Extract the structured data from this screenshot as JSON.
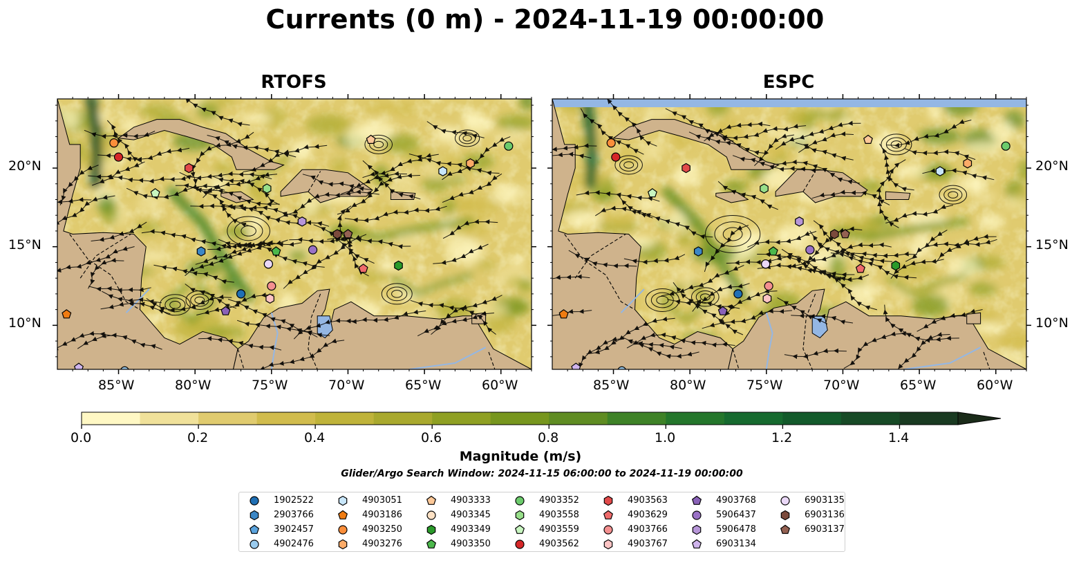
{
  "title": "Currents (0 m) - 2024-11-19 00:00:00",
  "panels": [
    {
      "name": "RTOFS"
    },
    {
      "name": "ESPC"
    }
  ],
  "lon_labels": [
    "85°W",
    "80°W",
    "75°W",
    "70°W",
    "65°W",
    "60°W"
  ],
  "lat_labels": [
    "20°N",
    "15°N",
    "10°N"
  ],
  "colorbar": {
    "label": "Magnitude (m/s)",
    "tick_labels": [
      "0.0",
      "0.2",
      "0.4",
      "0.6",
      "0.8",
      "1.0",
      "1.2",
      "1.4"
    ],
    "ticks": [
      0.0,
      0.2,
      0.4,
      0.6,
      0.8,
      1.0,
      1.2,
      1.4
    ],
    "min": 0.0,
    "max": 1.5,
    "levels": [
      0.0,
      0.1,
      0.2,
      0.3,
      0.4,
      0.5,
      0.6,
      0.7,
      0.8,
      0.9,
      1.0,
      1.1,
      1.2,
      1.3,
      1.4,
      1.5
    ],
    "colors": [
      "#fff8c4",
      "#f0e19a",
      "#e0cb6f",
      "#d1bc4d",
      "#bfb33a",
      "#a9a92e",
      "#8fa023",
      "#77961e",
      "#5f8c22",
      "#3e8227",
      "#24762b",
      "#166a2f",
      "#135a2b",
      "#174a26",
      "#193a21",
      "#1a2b19"
    ],
    "extend": "max"
  },
  "search_window": "Glider/Argo Search Window: 2024-11-15 06:00:00 to 2024-11-19 00:00:00",
  "legend_entries": [
    {
      "id": "1902522",
      "marker": "circle",
      "color": "#1f6fb4"
    },
    {
      "id": "2903766",
      "marker": "hexagon",
      "color": "#3c87c6"
    },
    {
      "id": "3902457",
      "marker": "pentagon",
      "color": "#5ba4de"
    },
    {
      "id": "4902476",
      "marker": "circle",
      "color": "#9acbee"
    },
    {
      "id": "4903051",
      "marker": "hexagon",
      "color": "#c8e6fa"
    },
    {
      "id": "4903186",
      "marker": "pentagon",
      "color": "#f07c12"
    },
    {
      "id": "4903250",
      "marker": "circle",
      "color": "#fb8e3a"
    },
    {
      "id": "4903276",
      "marker": "hexagon",
      "color": "#fcab68"
    },
    {
      "id": "4903333",
      "marker": "pentagon",
      "color": "#fdc898"
    },
    {
      "id": "4903345",
      "marker": "circle",
      "color": "#fde1c4"
    },
    {
      "id": "4903349",
      "marker": "hexagon",
      "color": "#2a9a2a"
    },
    {
      "id": "4903350",
      "marker": "pentagon",
      "color": "#4cb84c"
    },
    {
      "id": "4903352",
      "marker": "circle",
      "color": "#6ccb6c"
    },
    {
      "id": "4903558",
      "marker": "hexagon",
      "color": "#98df8a"
    },
    {
      "id": "4903559",
      "marker": "pentagon",
      "color": "#c8f5c0"
    },
    {
      "id": "4903562",
      "marker": "circle",
      "color": "#d62728"
    },
    {
      "id": "4903563",
      "marker": "hexagon",
      "color": "#e24a4a"
    },
    {
      "id": "4903629",
      "marker": "pentagon",
      "color": "#ef6b6b"
    },
    {
      "id": "4903766",
      "marker": "circle",
      "color": "#f49090"
    },
    {
      "id": "4903767",
      "marker": "hexagon",
      "color": "#fcc4c4"
    },
    {
      "id": "4903768",
      "marker": "pentagon",
      "color": "#8a62b8"
    },
    {
      "id": "5906437",
      "marker": "circle",
      "color": "#9a72c6"
    },
    {
      "id": "5906478",
      "marker": "hexagon",
      "color": "#b796d8"
    },
    {
      "id": "6903134",
      "marker": "pentagon",
      "color": "#cfb4ec"
    },
    {
      "id": "6903135",
      "marker": "circle",
      "color": "#ead8f7"
    },
    {
      "id": "6903136",
      "marker": "hexagon",
      "color": "#7b4a3c"
    },
    {
      "id": "6903137",
      "marker": "pentagon",
      "color": "#946152"
    }
  ],
  "float_positions": [
    {
      "id": "1902522",
      "lon": -77.0,
      "lat": 12.0
    },
    {
      "id": "2903766",
      "lon": -79.6,
      "lat": 14.7
    },
    {
      "id": "3902457",
      "lon": -84.0,
      "lat": 6.5
    },
    {
      "id": "4902476",
      "lon": -84.6,
      "lat": 7.1
    },
    {
      "id": "4903051",
      "lon": -63.8,
      "lat": 19.8
    },
    {
      "id": "4903186",
      "lon": -88.4,
      "lat": 10.7
    },
    {
      "id": "4903250",
      "lon": -85.3,
      "lat": 21.6
    },
    {
      "id": "4903276",
      "lon": -62.0,
      "lat": 20.3
    },
    {
      "id": "4903333",
      "lon": -68.5,
      "lat": 21.8
    },
    {
      "id": "4903345",
      "lon": -75.2,
      "lat": 13.9
    },
    {
      "id": "4903349",
      "lon": -66.7,
      "lat": 13.8
    },
    {
      "id": "4903350",
      "lon": -74.7,
      "lat": 14.7
    },
    {
      "id": "4903352",
      "lon": -59.5,
      "lat": 21.4
    },
    {
      "id": "4903558",
      "lon": -75.3,
      "lat": 18.7
    },
    {
      "id": "4903559",
      "lon": -82.6,
      "lat": 18.4
    },
    {
      "id": "4903562",
      "lon": -85.0,
      "lat": 20.7
    },
    {
      "id": "4903563",
      "lon": -80.4,
      "lat": 20.0
    },
    {
      "id": "4903629",
      "lon": -69.0,
      "lat": 13.6
    },
    {
      "id": "4903766",
      "lon": -75.0,
      "lat": 12.5
    },
    {
      "id": "4903767",
      "lon": -75.1,
      "lat": 11.7
    },
    {
      "id": "4903768",
      "lon": -78.0,
      "lat": 10.9
    },
    {
      "id": "5906437",
      "lon": -72.3,
      "lat": 14.8
    },
    {
      "id": "5906478",
      "lon": -73.0,
      "lat": 16.6
    },
    {
      "id": "6903134",
      "lon": -87.6,
      "lat": 7.3
    },
    {
      "id": "6903135",
      "lon": -75.2,
      "lat": 13.9
    },
    {
      "id": "6903136",
      "lon": -70.7,
      "lat": 15.8
    },
    {
      "id": "6903137",
      "lon": -70.0,
      "lat": 15.8
    }
  ]
}
